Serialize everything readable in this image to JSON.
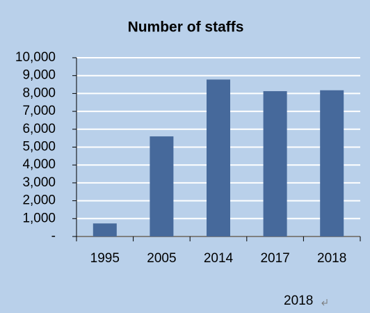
{
  "chart_data": {
    "type": "bar",
    "title": "Number of staffs",
    "categories": [
      "1995",
      "2005",
      "2014",
      "2017",
      "2018"
    ],
    "values": [
      730,
      5600,
      8780,
      8130,
      8180
    ],
    "color": "#46699b",
    "ylim": [
      0,
      10000
    ],
    "yticks": [
      {
        "value": 0,
        "label": "-"
      },
      {
        "value": 1000,
        "label": "1,000"
      },
      {
        "value": 2000,
        "label": "2,000"
      },
      {
        "value": 3000,
        "label": "3,000"
      },
      {
        "value": 4000,
        "label": "4,000"
      },
      {
        "value": 5000,
        "label": "5,000"
      },
      {
        "value": 6000,
        "label": "6,000"
      },
      {
        "value": 7000,
        "label": "7,000"
      },
      {
        "value": 8000,
        "label": "8,000"
      },
      {
        "value": 9000,
        "label": "9,000"
      },
      {
        "value": 10000,
        "label": "10,000"
      }
    ],
    "grid": true,
    "annotation": "2018"
  }
}
